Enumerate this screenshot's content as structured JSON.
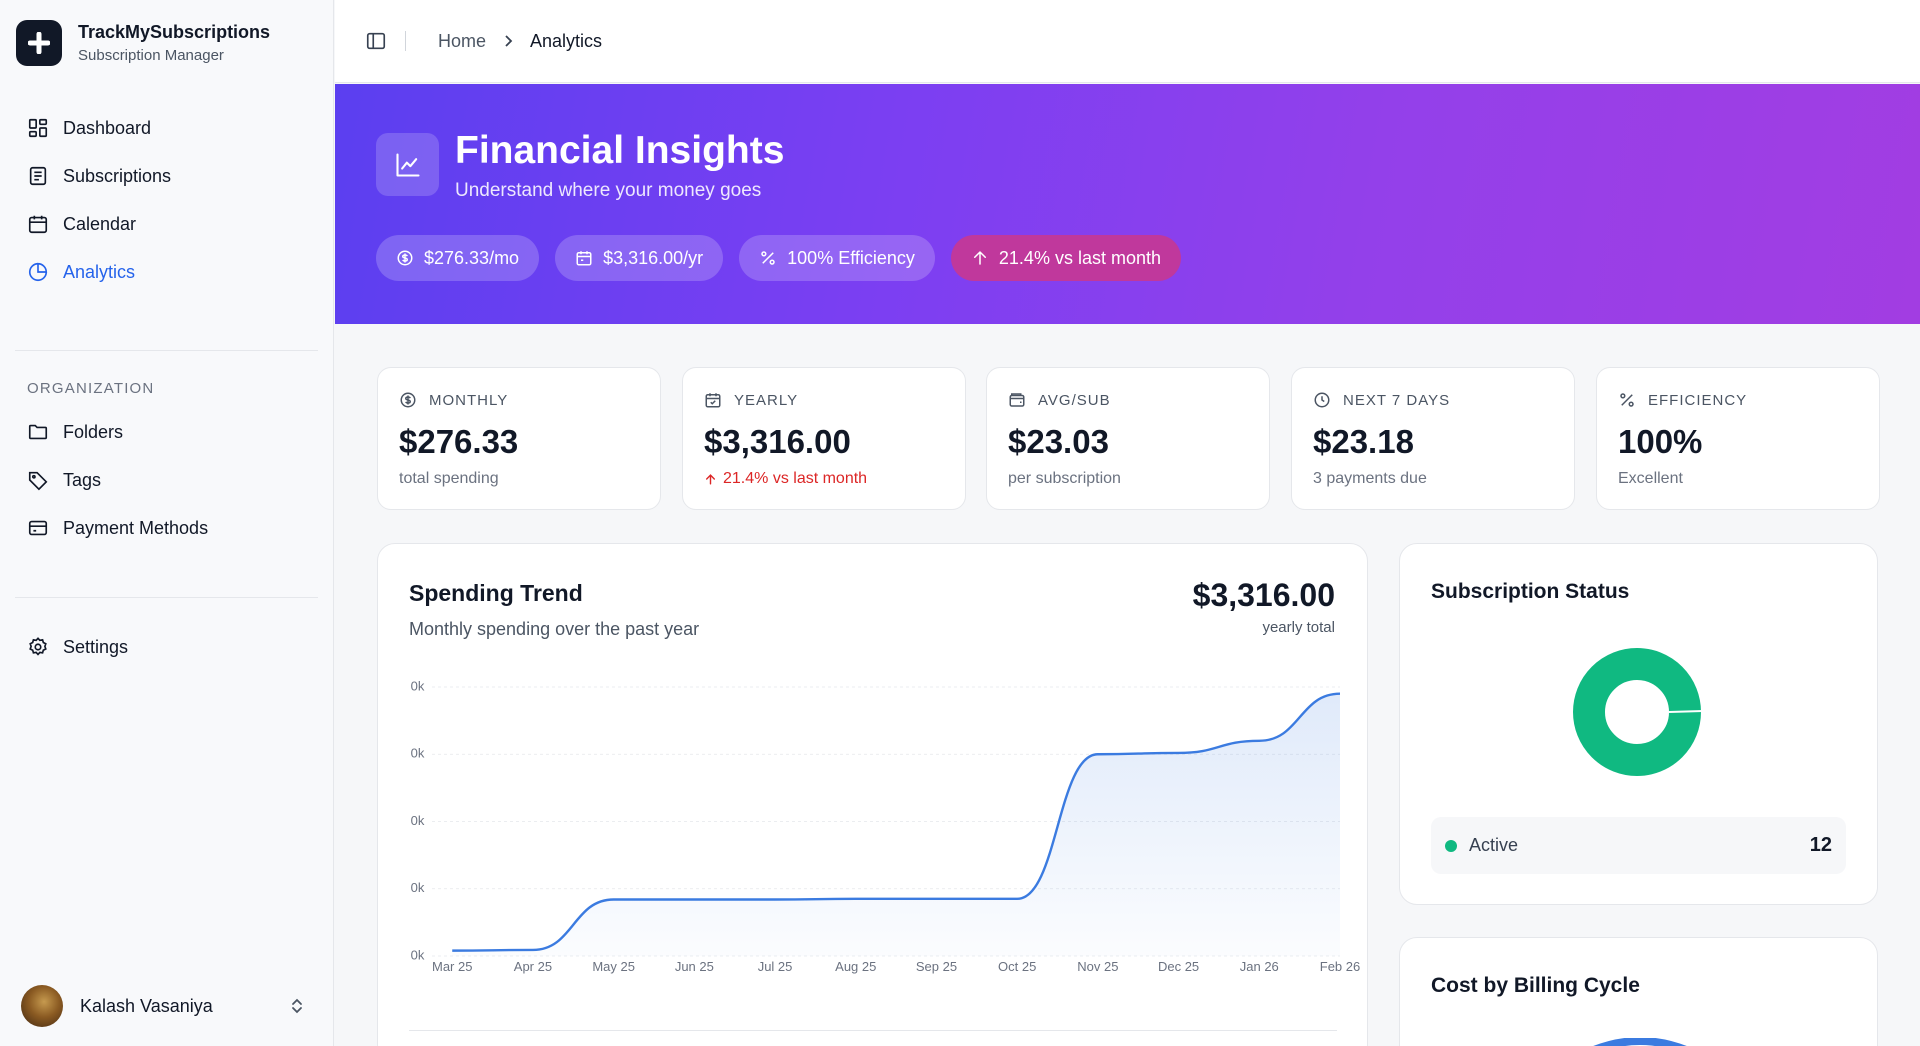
{
  "brand": {
    "name": "TrackMySubscriptions",
    "subtitle": "Subscription Manager"
  },
  "sidebar": {
    "main": [
      {
        "label": "Dashboard",
        "icon": "dashboard-icon"
      },
      {
        "label": "Subscriptions",
        "icon": "list-icon"
      },
      {
        "label": "Calendar",
        "icon": "calendar-icon"
      },
      {
        "label": "Analytics",
        "icon": "pie-chart-icon",
        "active": true
      }
    ],
    "org_label": "ORGANIZATION",
    "org": [
      {
        "label": "Folders",
        "icon": "folder-icon"
      },
      {
        "label": "Tags",
        "icon": "tag-icon"
      },
      {
        "label": "Payment Methods",
        "icon": "credit-card-icon"
      }
    ],
    "settings": {
      "label": "Settings",
      "icon": "gear-icon"
    },
    "user": {
      "name": "Kalash Vasaniya"
    }
  },
  "breadcrumb": {
    "home": "Home",
    "current": "Analytics"
  },
  "hero": {
    "title": "Financial Insights",
    "subtitle": "Understand where your money goes",
    "pills": [
      {
        "label": "$276.33/mo",
        "icon": "dollar-circle-icon"
      },
      {
        "label": "$3,316.00/yr",
        "icon": "calendar-icon"
      },
      {
        "label": "100% Efficiency",
        "icon": "percent-icon"
      },
      {
        "label": "21.4% vs last month",
        "icon": "arrow-up-icon"
      }
    ]
  },
  "stats": [
    {
      "label": "MONTHLY",
      "value": "$276.33",
      "sub": "total spending",
      "icon": "dollar-circle-icon"
    },
    {
      "label": "YEARLY",
      "value": "$3,316.00",
      "sub": "21.4% vs last month",
      "icon": "calendar-check-icon",
      "trend": "up"
    },
    {
      "label": "AVG/SUB",
      "value": "$23.03",
      "sub": "per subscription",
      "icon": "wallet-icon"
    },
    {
      "label": "NEXT 7 DAYS",
      "value": "$23.18",
      "sub": "3 payments due",
      "icon": "clock-icon"
    },
    {
      "label": "EFFICIENCY",
      "value": "100%",
      "sub": "Excellent",
      "icon": "percent-icon"
    }
  ],
  "spending": {
    "title": "Spending Trend",
    "subtitle": "Monthly spending over the past year",
    "total": "$3,316.00",
    "total_label": "yearly total"
  },
  "chart_data": {
    "type": "area",
    "x": [
      "Mar 25",
      "Apr 25",
      "May 25",
      "Jun 25",
      "Jul 25",
      "Aug 25",
      "Sep 25",
      "Oct 25",
      "Nov 25",
      "Dec 25",
      "Jan 26",
      "Feb 26"
    ],
    "values": [
      0.08,
      0.09,
      0.84,
      0.84,
      0.84,
      0.85,
      0.85,
      0.85,
      3.0,
      3.02,
      3.2,
      3.9
    ],
    "y_ticks": [
      "0k",
      "0k",
      "0k",
      "0k",
      "0k"
    ],
    "ylim": [
      0,
      4
    ],
    "grid": true,
    "color": "#3b7be0"
  },
  "status": {
    "title": "Subscription Status",
    "legend": [
      {
        "label": "Active",
        "count": "12",
        "color": "#10b981"
      }
    ]
  },
  "billing": {
    "title": "Cost by Billing Cycle"
  }
}
